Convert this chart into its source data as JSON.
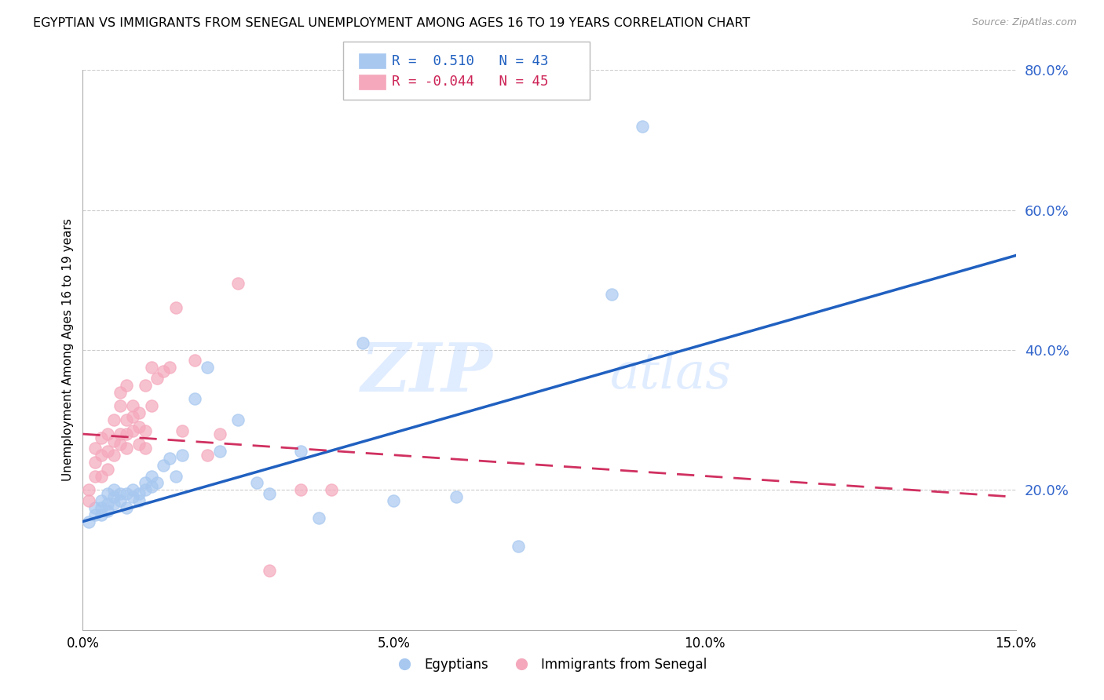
{
  "title": "EGYPTIAN VS IMMIGRANTS FROM SENEGAL UNEMPLOYMENT AMONG AGES 16 TO 19 YEARS CORRELATION CHART",
  "source": "Source: ZipAtlas.com",
  "ylabel": "Unemployment Among Ages 16 to 19 years",
  "xlim": [
    0.0,
    0.15
  ],
  "ylim": [
    0.0,
    0.8
  ],
  "yticks": [
    0.2,
    0.4,
    0.6,
    0.8
  ],
  "ytick_labels": [
    "20.0%",
    "40.0%",
    "60.0%",
    "80.0%"
  ],
  "xticks": [
    0.0,
    0.05,
    0.1,
    0.15
  ],
  "xtick_labels": [
    "0.0%",
    "5.0%",
    "10.0%",
    "15.0%"
  ],
  "blue_R": 0.51,
  "blue_N": 43,
  "pink_R": -0.044,
  "pink_N": 45,
  "blue_color": "#A8C8F0",
  "pink_color": "#F5A8BC",
  "blue_line_color": "#2060C0",
  "pink_line_color": "#D03060",
  "legend1_label": "Egyptians",
  "legend2_label": "Immigrants from Senegal",
  "watermark_zip": "ZIP",
  "watermark_atlas": "atlas",
  "blue_x": [
    0.001,
    0.002,
    0.002,
    0.003,
    0.003,
    0.003,
    0.004,
    0.004,
    0.004,
    0.005,
    0.005,
    0.005,
    0.006,
    0.006,
    0.007,
    0.007,
    0.008,
    0.008,
    0.009,
    0.009,
    0.01,
    0.01,
    0.011,
    0.011,
    0.012,
    0.013,
    0.014,
    0.015,
    0.016,
    0.018,
    0.02,
    0.022,
    0.025,
    0.028,
    0.03,
    0.035,
    0.038,
    0.045,
    0.05,
    0.06,
    0.07,
    0.085,
    0.09
  ],
  "blue_y": [
    0.155,
    0.165,
    0.175,
    0.165,
    0.175,
    0.185,
    0.17,
    0.18,
    0.195,
    0.18,
    0.19,
    0.2,
    0.185,
    0.195,
    0.175,
    0.195,
    0.19,
    0.2,
    0.195,
    0.185,
    0.2,
    0.21,
    0.205,
    0.22,
    0.21,
    0.235,
    0.245,
    0.22,
    0.25,
    0.33,
    0.375,
    0.255,
    0.3,
    0.21,
    0.195,
    0.255,
    0.16,
    0.41,
    0.185,
    0.19,
    0.12,
    0.48,
    0.72
  ],
  "pink_x": [
    0.001,
    0.001,
    0.002,
    0.002,
    0.002,
    0.003,
    0.003,
    0.003,
    0.004,
    0.004,
    0.004,
    0.005,
    0.005,
    0.005,
    0.006,
    0.006,
    0.006,
    0.006,
    0.007,
    0.007,
    0.007,
    0.007,
    0.008,
    0.008,
    0.008,
    0.009,
    0.009,
    0.009,
    0.01,
    0.01,
    0.01,
    0.011,
    0.011,
    0.012,
    0.013,
    0.014,
    0.015,
    0.016,
    0.018,
    0.02,
    0.022,
    0.025,
    0.03,
    0.035,
    0.04
  ],
  "pink_y": [
    0.185,
    0.2,
    0.22,
    0.24,
    0.26,
    0.22,
    0.25,
    0.275,
    0.23,
    0.255,
    0.28,
    0.25,
    0.27,
    0.3,
    0.265,
    0.28,
    0.32,
    0.34,
    0.26,
    0.28,
    0.3,
    0.35,
    0.285,
    0.305,
    0.32,
    0.265,
    0.29,
    0.31,
    0.26,
    0.285,
    0.35,
    0.32,
    0.375,
    0.36,
    0.37,
    0.375,
    0.46,
    0.285,
    0.385,
    0.25,
    0.28,
    0.495,
    0.085,
    0.2,
    0.2
  ],
  "blue_line_x0": 0.0,
  "blue_line_y0": 0.155,
  "blue_line_x1": 0.15,
  "blue_line_y1": 0.535,
  "pink_line_x0": 0.0,
  "pink_line_y0": 0.28,
  "pink_line_x1": 0.15,
  "pink_line_y1": 0.19
}
